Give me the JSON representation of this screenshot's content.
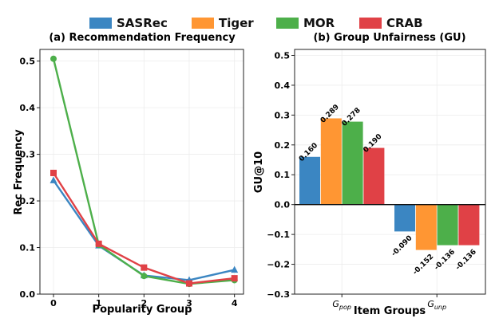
{
  "legend": [
    {
      "name": "SASRec",
      "color": "#3b86c2"
    },
    {
      "name": "Tiger",
      "color": "#ff9633"
    },
    {
      "name": "MOR",
      "color": "#4daf4a"
    },
    {
      "name": "CRAB",
      "color": "#e04146"
    }
  ],
  "chart_data": [
    {
      "type": "line",
      "title": "(a) Recommendation Frequency",
      "xlabel": "Popularity Group",
      "ylabel": "Rec Frequency",
      "x": [
        0,
        1,
        2,
        3,
        4
      ],
      "xticks": [
        "0",
        "1",
        "2",
        "3",
        "4"
      ],
      "yticks": [
        "0.0",
        "0.1",
        "0.2",
        "0.3",
        "0.4",
        "0.5"
      ],
      "xlim": [
        -0.3,
        4.2
      ],
      "ylim": [
        0,
        0.525
      ],
      "grid": true,
      "series": [
        {
          "name": "SASRec",
          "color": "#3b86c2",
          "marker": "triangle",
          "values": [
            0.244,
            0.104,
            0.04,
            0.03,
            0.052
          ]
        },
        {
          "name": "MOR",
          "color": "#4daf4a",
          "marker": "circle",
          "values": [
            0.505,
            0.106,
            0.039,
            0.022,
            0.03
          ]
        },
        {
          "name": "CRAB",
          "color": "#e04146",
          "marker": "square",
          "values": [
            0.26,
            0.108,
            0.057,
            0.023,
            0.034
          ]
        }
      ]
    },
    {
      "type": "bar",
      "title": "(b) Group Unfairness (GU)",
      "xlabel": "Item Groups",
      "ylabel": "GU@10",
      "categories": [
        {
          "main": "G",
          "sub": "pop"
        },
        {
          "main": "G",
          "sub": "unp"
        }
      ],
      "yticks": [
        "−0.3",
        "−0.2",
        "−0.1",
        "0.0",
        "0.1",
        "0.2",
        "0.3",
        "0.4",
        "0.5"
      ],
      "ylim": [
        -0.3,
        0.52
      ],
      "grid": true,
      "series": [
        {
          "name": "SASRec",
          "color": "#3b86c2",
          "values": [
            0.16,
            -0.09
          ],
          "labels": [
            "0.160",
            "-0.090"
          ]
        },
        {
          "name": "Tiger",
          "color": "#ff9633",
          "values": [
            0.289,
            -0.152
          ],
          "labels": [
            "0.289",
            "-0.152"
          ]
        },
        {
          "name": "MOR",
          "color": "#4daf4a",
          "values": [
            0.278,
            -0.136
          ],
          "labels": [
            "0.278",
            "-0.136"
          ]
        },
        {
          "name": "CRAB",
          "color": "#e04146",
          "values": [
            0.19,
            -0.136
          ],
          "labels": [
            "0.190",
            "-0.136"
          ]
        }
      ]
    }
  ]
}
